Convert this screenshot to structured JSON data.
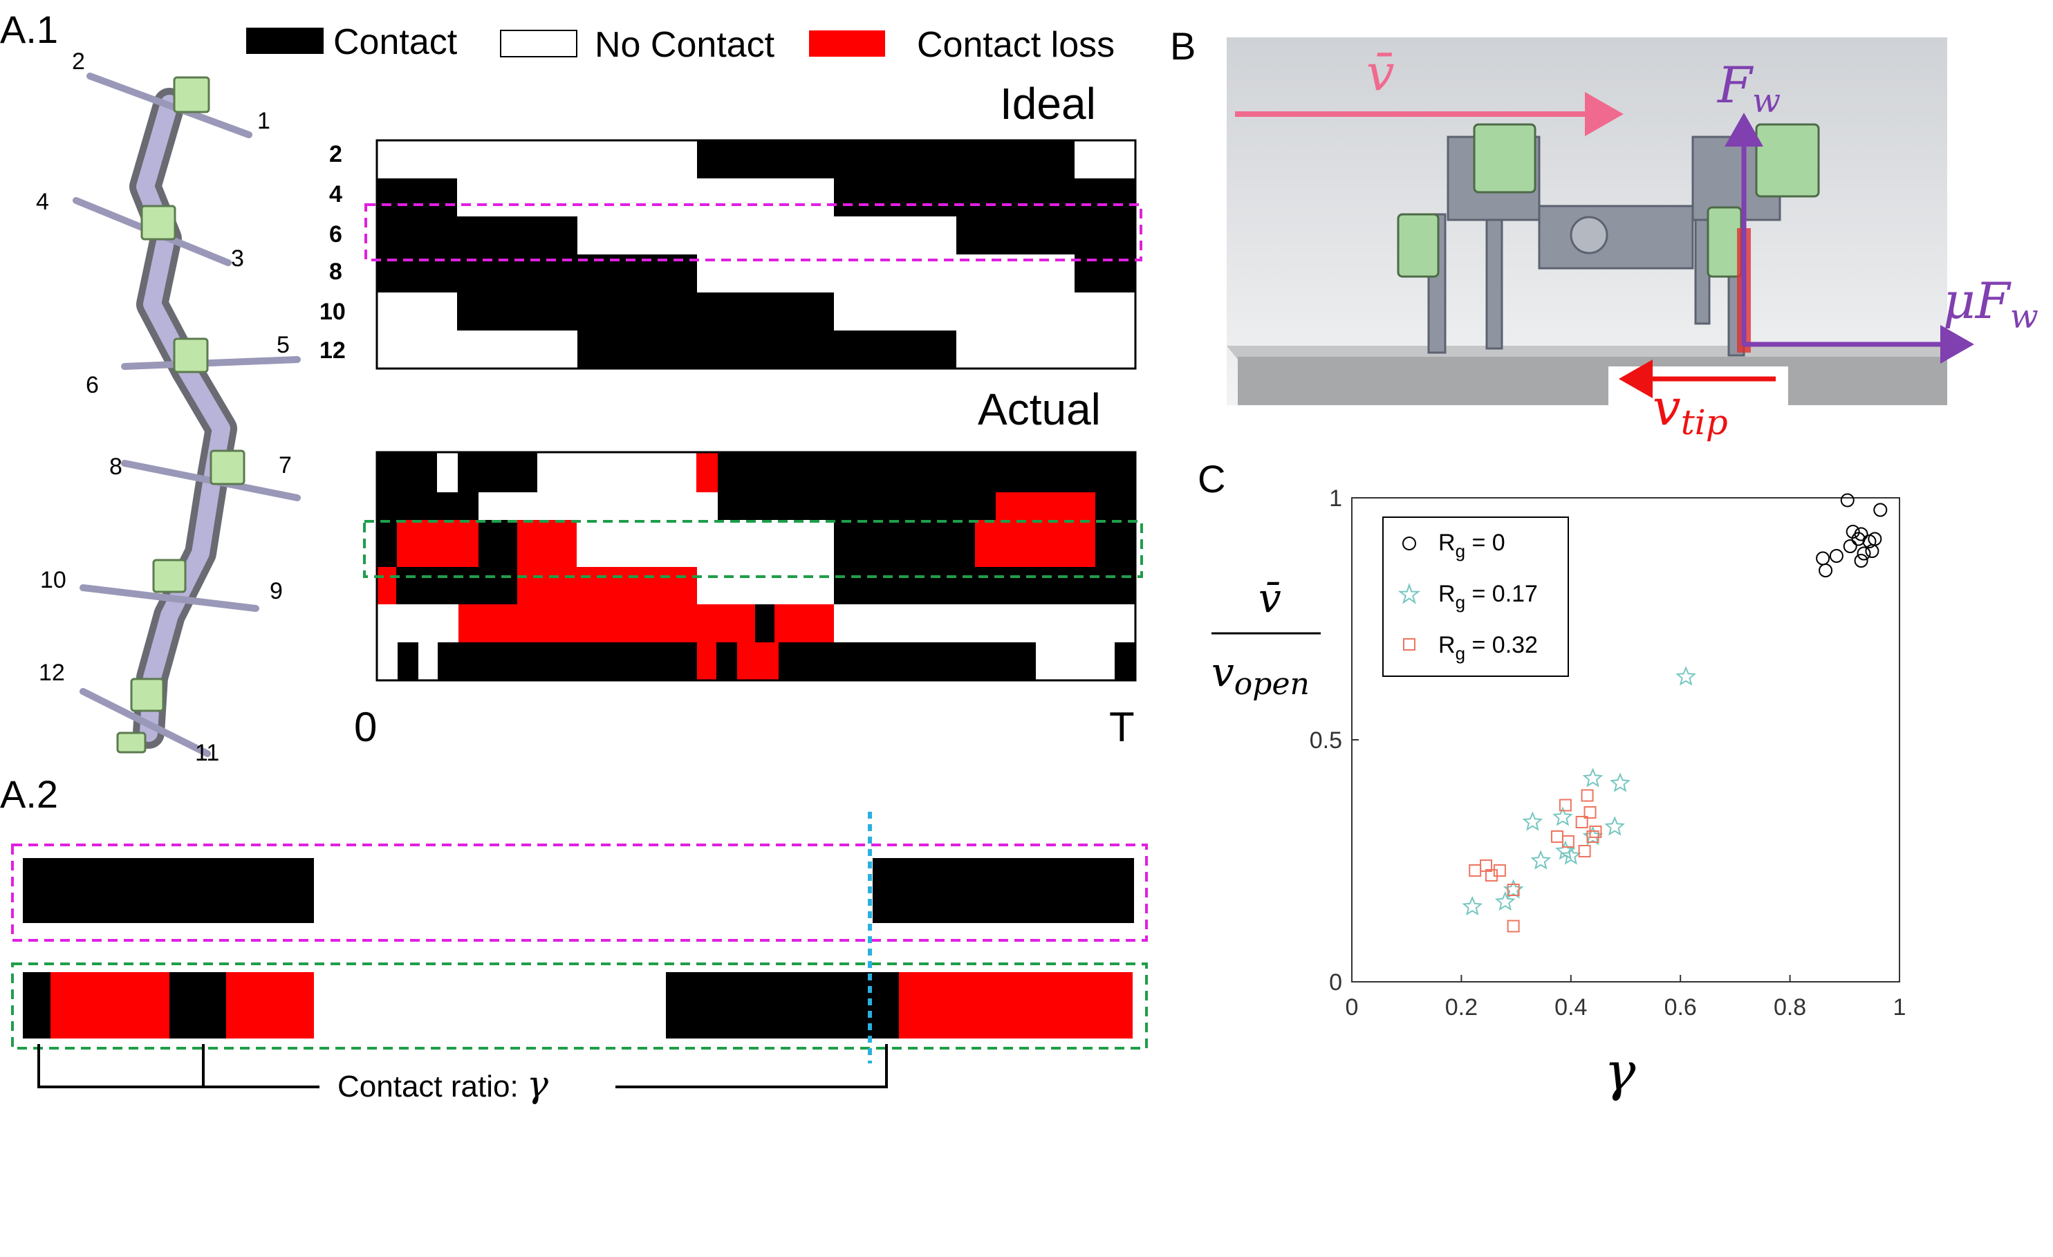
{
  "panels": {
    "a1": "A.1",
    "a2": "A.2",
    "b": "B",
    "c": "C"
  },
  "legend": {
    "contact": "Contact",
    "no_contact": "No Contact",
    "contact_loss": "Contact loss"
  },
  "colors": {
    "contact": "#000000",
    "no_contact": "#ffffff",
    "contact_loss": "#ff0000",
    "ideal_box": "#e020e0",
    "actual_box": "#1f9e4a",
    "dotted_line": "#2ab0e0",
    "series_0": "#000000",
    "series_017": "#76c7c0",
    "series_032": "#ee7560",
    "velocity": "#f06a8f",
    "force": "#8040b0",
    "tip": "#ee1111"
  },
  "a1": {
    "robot_numbers": [
      "2",
      "1",
      "4",
      "3",
      "5",
      "6",
      "8",
      "7",
      "10",
      "9",
      "12",
      "11"
    ],
    "ideal_title": "Ideal",
    "actual_title": "Actual",
    "row_labels": [
      "2",
      "4",
      "6",
      "8",
      "10",
      "12"
    ],
    "axis_start": "0",
    "axis_end": "T"
  },
  "a2": {
    "annotation": "Contact ratio: ",
    "gamma": "γ"
  },
  "b": {
    "v_bar": "v̄",
    "F": "F",
    "w": "w",
    "mu_F": "μF",
    "v_tip": "v",
    "tip": "tip"
  },
  "chart_data": {
    "type": "scatter",
    "xlabel": "γ",
    "ylabel_top": "v̄",
    "ylabel_bottom": "v",
    "ylabel_bottom_sub": "open",
    "xlim": [
      0,
      1
    ],
    "ylim": [
      0,
      1
    ],
    "x_ticks": [
      "0",
      "0.2",
      "0.4",
      "0.6",
      "0.8",
      "1"
    ],
    "y_ticks": [
      "0",
      "0.5",
      "1"
    ],
    "grid": false,
    "legend_position": "top-left",
    "series": [
      {
        "name": "R",
        "sub": "g",
        "value_text": " = 0",
        "marker": "circle",
        "color": "#000000",
        "x": [
          0.905,
          0.965,
          0.915,
          0.93,
          0.925,
          0.945,
          0.955,
          0.91,
          0.935,
          0.95,
          0.885,
          0.86,
          0.865,
          0.93
        ],
        "y": [
          0.995,
          0.975,
          0.93,
          0.925,
          0.915,
          0.91,
          0.915,
          0.9,
          0.885,
          0.89,
          0.88,
          0.875,
          0.85,
          0.87
        ]
      },
      {
        "name": "R",
        "sub": "g",
        "value_text": " = 0.17",
        "marker": "star",
        "color": "#76c7c0",
        "x": [
          0.61,
          0.44,
          0.49,
          0.33,
          0.385,
          0.48,
          0.39,
          0.4,
          0.345,
          0.44,
          0.295,
          0.28,
          0.22
        ],
        "y": [
          0.63,
          0.42,
          0.41,
          0.33,
          0.34,
          0.32,
          0.27,
          0.26,
          0.25,
          0.3,
          0.19,
          0.165,
          0.155
        ]
      },
      {
        "name": "R",
        "sub": "g",
        "value_text": " = 0.32",
        "marker": "square",
        "color": "#ee7560",
        "x": [
          0.39,
          0.43,
          0.435,
          0.42,
          0.445,
          0.375,
          0.44,
          0.395,
          0.425,
          0.245,
          0.255,
          0.225,
          0.27,
          0.295,
          0.295
        ],
        "y": [
          0.365,
          0.385,
          0.35,
          0.33,
          0.31,
          0.3,
          0.3,
          0.29,
          0.27,
          0.24,
          0.22,
          0.23,
          0.23,
          0.19,
          0.115
        ]
      }
    ]
  }
}
